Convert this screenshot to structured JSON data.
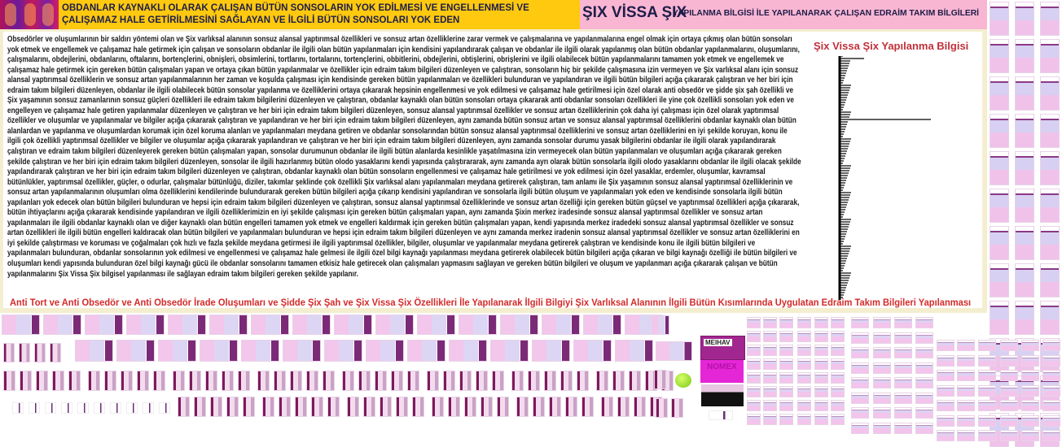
{
  "header": {
    "left_banner_text": "OBDANLAR KAYNAKLI OLARAK ÇALIŞAN BÜTÜN SONSOLARIN YOK EDİLMESİ VE ENGELLENMESİ VE ÇALIŞAMAZ HALE GETİRİLMESİNİ SAĞLAYAN VE İLGİLİ BÜTÜN SONSOLARI YOK EDEN",
    "brand": "ŞIX VİSSA ŞIX",
    "brand_subtitle": "YAPILANMA BİLGİSİ İLE YAPILANARAK ÇALIŞAN EDRAİM TAKIM BİLGİLERİ",
    "colors": {
      "orange": "#fec90f",
      "pink": "#f9b6d2",
      "text": "#1d1d4a"
    }
  },
  "main": {
    "paragraph_lines": [
      "Obsedörler ve oluşumlarının bir saldırı yöntemi olan ve Şix varlıksal alanının sonsuz alansal yaptırımsal özellikleri ve sonsuz artan özelliklerine zarar vermek ve çalışmalarına ve yapılanmalarına engel olmak için ortaya çıkmış olan bütün sonsoları",
      "yok etmek ve engellemek ve çalışamaz hale getirmek için çalışan ve sonsoların obdanlar ile ilgili olan bütün yapılanmaları için kendisini yapılandırarak çalışan ve obdanlar ile ilgili olarak yapılanmış olan bütün obdanlar yapılanmalarını, oluşumlarını,",
      "çalışmalarını, obdejlerini, obdanlarını, oftalarını, bortençlerini, obnişleri, obsimlerini, tortlarını, tortalarını, tortençlerini, obbitlerini, obdejlerini, obtişlerini, obrişlerini ve ilgili olabilecek bütün yapılanmalarını tamamen yok etmek ve engellemek ve",
      "çalışamaz hale getirmek için gereken bütün çalışmaları yapan ve ortaya çıkan bütün yapılanmalar ve özellikler için edraim takım bilgileri düzenleyen ve çalıştıran, sonsoların hiç bir şekilde çalışmasına izin vermeyen ve Şix varlıksal alanı için sonsuz",
      "alansal yaptırımsal özelliklerin ve sonsuz artan yapılanmalarının her zaman ve koşulda çalışması için kendisinde gereken bütün yapılanmaları ve özellikleri bulunduran ve yapılandıran ve ilgili bütün bilgileri açığa çıkararak çalıştıran ve her biri için",
      "edraim takım bilgileri düzenleyen, obdanlar ile ilgili olabilecek bütün sonsolar yapılanma ve özelliklerini ortaya çıkararak hepsinin engellenmesi ve yok edilmesi ve çalışamaz hale getirilmesi için özel olarak anti obsedör ve şidde şix şah özellikli ve",
      "Şix yaşamının sonsuz zamanlarının sonsuz güçleri özellikleri ile edraim takım bilgilerini düzenleyen ve çalıştıran, obdanlar kaynaklı olan bütün sonsoları ortaya çıkararak anti obdanlar sonsoları özellikleri ile yine çok özellikli sonsoları yok eden ve",
      "engelleyen ve çalışamaz hale getiren yapılanmalar düzenleyen ve çalıştıran ve her biri için edraim takım bilgileri düzenleyen, sonsuz alansal yaptırımsal özellikler ve sonsuz artan özelliklerinin çok daha iyi çalışması için özel olarak yaptırımsal",
      "özellikler ve oluşumlar ve yapılanmalar ve bilgiler açığa çıkararak çalıştıran ve yapılandıran ve her biri için edraim takım bilgileri düzenleyen, aynı zamanda bütün sonsuz artan ve sonsuz alansal yaptırımsal özelliklerini obdanlar kaynaklı olan bütün",
      "alanlardan ve yapılanma ve oluşumlardan korumak için özel koruma alanları ve yapılanmaları meydana getiren ve obdanlar sonsolarından bütün sonsuz alansal yaptırımsal özelliklerini ve sonsuz artan özelliklerini en iyi şekilde koruyan, konu ile",
      "ilgili çok özellikli yaptırımsal özellikler ve bilgiler ve oluşumlar açığa çıkararak yapılandıran ve çalıştıran ve her biri için edraim takım bilgileri düzenleyen, aynı zamanda sonsolar durumu yasak bilgilerini obdanlar ile ilgili olarak yapılandırarak",
      "çalıştıran ve edraim takım bilgileri düzenleyerek gereken bütün çalışmaları yapan, sonsolar durumunun obdanlar ile ilgili bütün alanlarda kesinlikle yaşatılmasına izin vermeyecek olan bütün yapılanmaları ve oluşumları açığa çıkararak gereken",
      "şekilde çalıştıran ve her biri için edraim takım bilgileri düzenleyen, sonsolar ile ilgili hazırlanmış bütün olodo yasaklarını kendi yapısında çalıştırararak, aynı zamanda ayrı olarak bütün sonsolarla ilgili olodo yasaklarını obdanlar ile ilgili olacak şekilde",
      "yapılandırarak çalıştıran ve her biri için edraim takım bilgileri düzenleyen ve çalıştıran, obdanlar kaynaklı olan bütün sonsoların engellenmesi ve çalışamaz hale getirilmesi ve yok edilmesi için özel yasaklar, erdemler, oluşumlar, kavramsal",
      "bütünlükler, yaptırımsal özellikler, güçler, o odurlar, çalışmalar bütünlüğü, diziler, takımlar şeklinde çok özellikli Şix varlıksal alanı yapılanmaları meydana getirerek çalıştıran, tam anlamı ile Şix yaşamının sonsuz alansal yaptırımsal özelliklerinin ve",
      "sonsuz artan yapılanmalarının oluşumları olma özelliklerini kendilerinde bulundurarak gereken bütün bilgileri açığa çıkarıp kendisini yapılandıran ve sonsolarla ilgili bütün oluşum ve yapılanmaları yok eden ve kendisinde sonsolarla ilgili bütün",
      "yapılanları yok edecek olan bütün bilgileri bulunduran ve hepsi için edraim takım bilgileri düzenleyen ve çalıştıran, sonsuz alansal yaptırımsal özelliklerinde ve sonsuz artan özelliği için gereken bütün güçsel ve yaptırımsal özellikleri açığa çıkararak,",
      "bütün ihtiyaçlarını açığa çıkararak kendisinde yapılandıran ve ilgili özelliklerimizin en iyi şekilde çalışması için gereken bütün çalışmaları yapan, aynı zamanda Şixin merkez iradesinde sonsuz alansal yaptırımsal özellikler ve sonsuz artan",
      "yapılanmaları ile ilgili obdanlar kaynaklı olan ve diğer kaynaklı olan bütün engelleri tamamen yok etmek ve engelleri kaldırmak için gereken bütün çalışmaları yapan, kendi yapısında merkez iradedeki sonsuz alansal yaptırımsal özellikler ve sonsuz",
      "artan özellikleri ile ilgili bütün engelleri kaldıracak olan bütün bilgileri ve yapılanmaları bulunduran ve hepsi için edraim takım bilgileri düzenleyen ve aynı zamanda merkez iradenin sonsuz alansal yaptırımsal özellikler ve sonsuz artan özelliklerini en",
      "iyi şekilde çalıştırması ve koruması ve çoğalmaları çok hızlı ve fazla şekilde meydana getirmesi ile ilgili yaptırımsal özellikler, bilgiler, oluşumlar ve yapılanmalar meydana getirerek çalıştıran ve kendisinde konu ile ilgili bütün bilgileri ve",
      "yapılanmaları bulunduran, obdanlar sonsolarının yok edilmesi ve engellenmesi ve çalışamaz hale gelmesi ile ilgili özel bilgi kaynağı yapılanması meydana getirerek olabilecek bütün bilgileri açığa çıkaran ve bilgi kaynağı özelliği ile bütün bilgileri ve",
      "oluşumları kendi yapısında bulunduran özel bilgi kaynağı gücü ile obdanlar sonsolarını tamamen etkisiz hale getirecek olan çalışmaları yapmasını sağlayan ve gereken bütün bilgileri ve oluşum ve yapılanmarı açığa çıkararak çalışan ve bütün",
      "yapılanmalarını Şix Vissa Şix bilgisel yapılanması ile sağlayan edraim takım bilgileri gereken şekilde yapılanır."
    ],
    "side_title": "Şix Vissa Şix Yapılanma Bilgisi",
    "subtitle": "Anti Tort ve Anti Obsedör ve Anti Obsedör İrade Oluşumları ve Şidde Şix Şah ve Şix Vissa Şix Özellikleri İle Yapılanarak İlgili Bilgiyi Şix Varlıksal Alanının İlgili Bütün Kısımlarında Uygulatan Edraim Takım Bilgileri Yapılanması",
    "colors": {
      "title_red": "#c0303a",
      "subtitle_red": "#d42a2a",
      "panel": "#f4eed0"
    }
  },
  "gallery": {
    "banner_labels": [
      "MEIHAV",
      "NOMEX"
    ],
    "colors": {
      "thumb_pink": "#f3c6ec",
      "thumb_lavender": "#dcd6f4",
      "thumb_purple": "#7b2a77"
    }
  }
}
